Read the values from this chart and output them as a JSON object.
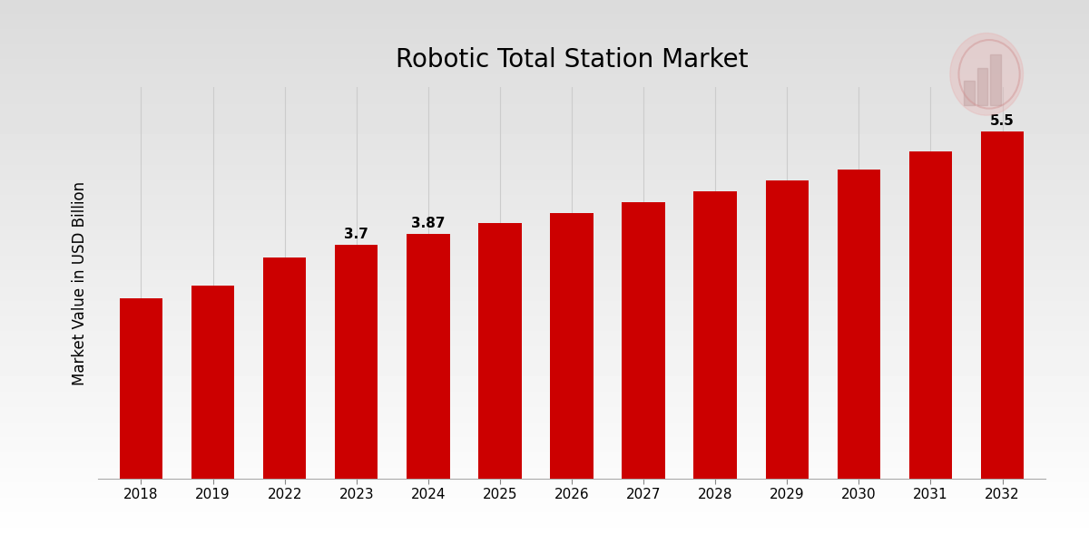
{
  "title": "Robotic Total Station Market",
  "ylabel": "Market Value in USD Billion",
  "categories": [
    "2018",
    "2019",
    "2022",
    "2023",
    "2024",
    "2025",
    "2026",
    "2027",
    "2028",
    "2029",
    "2030",
    "2031",
    "2032"
  ],
  "values": [
    2.85,
    3.05,
    3.5,
    3.7,
    3.87,
    4.05,
    4.2,
    4.38,
    4.55,
    4.72,
    4.9,
    5.18,
    5.5
  ],
  "bar_color": "#CC0000",
  "labeled_bars": {
    "2023": "3.7",
    "2024": "3.87",
    "2032": "5.5"
  },
  "ylim": [
    0,
    6.2
  ],
  "grid_color": "#cccccc",
  "title_fontsize": 20,
  "ylabel_fontsize": 12,
  "tick_fontsize": 11,
  "label_fontsize": 11,
  "bottom_bar_color": "#CC0000",
  "bar_width": 0.6
}
